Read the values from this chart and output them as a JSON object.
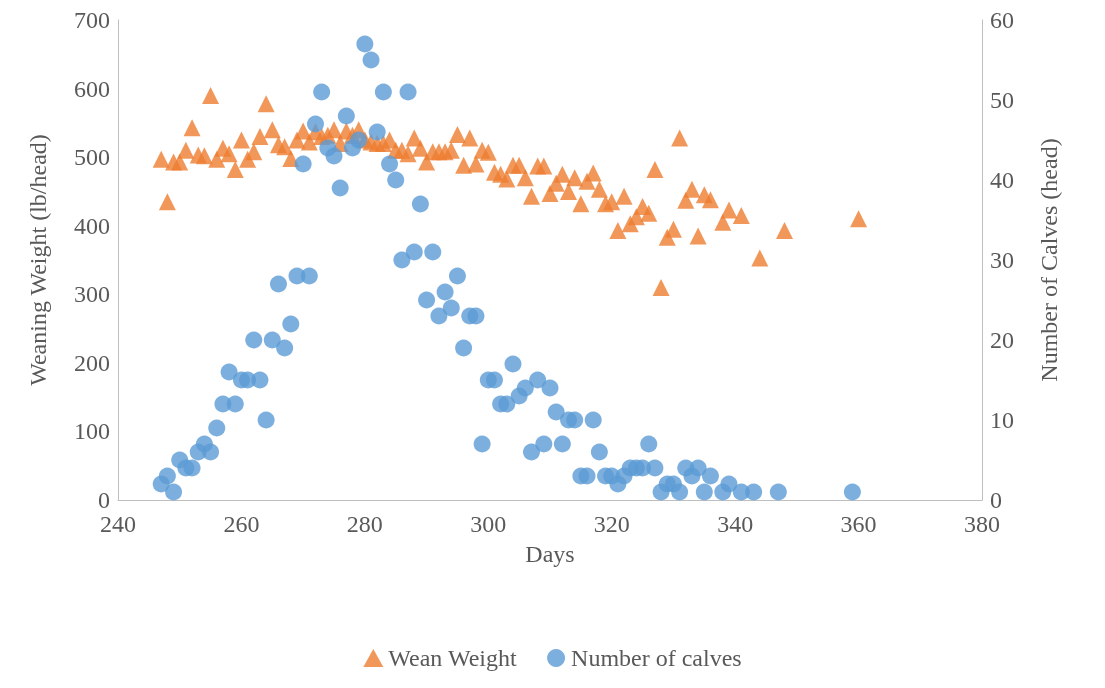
{
  "chart_data": {
    "type": "scatter",
    "xlabel": "Days",
    "ylabel": "Weaning Weight (lb/head)",
    "y2label": "Number of Calves (head)",
    "xlim": [
      240,
      380
    ],
    "xticks": [
      240,
      260,
      280,
      300,
      320,
      340,
      360,
      380
    ],
    "ylim": [
      0,
      700
    ],
    "yticks": [
      0,
      100,
      200,
      300,
      400,
      500,
      600,
      700
    ],
    "y2lim": [
      0,
      60
    ],
    "y2ticks": [
      0,
      10,
      20,
      30,
      40,
      50,
      60
    ],
    "grid": false,
    "legend": "bottom",
    "series": [
      {
        "name": "Wean Weight",
        "color": "#ed7d31",
        "marker": "triangle",
        "x": [
          247,
          248,
          249,
          250,
          251,
          252,
          253,
          254,
          255,
          256,
          257,
          258,
          259,
          260,
          261,
          262,
          263,
          264,
          265,
          266,
          267,
          268,
          269,
          270,
          271,
          272,
          273,
          274,
          275,
          276,
          277,
          278,
          279,
          280,
          281,
          282,
          283,
          284,
          285,
          286,
          287,
          288,
          289,
          290,
          291,
          292,
          293,
          294,
          295,
          296,
          297,
          298,
          299,
          300,
          301,
          302,
          303,
          304,
          305,
          306,
          307,
          308,
          309,
          310,
          311,
          312,
          313,
          314,
          315,
          316,
          317,
          318,
          319,
          320,
          321,
          322,
          323,
          324,
          325,
          326,
          327,
          328,
          329,
          330,
          331,
          332,
          333,
          334,
          335,
          336,
          338,
          339,
          341,
          344,
          348,
          360
        ],
        "values": [
          497,
          435,
          493,
          493,
          510,
          543,
          503,
          502,
          590,
          497,
          513,
          505,
          482,
          525,
          497,
          508,
          530,
          578,
          540,
          518,
          515,
          498,
          525,
          538,
          522,
          537,
          530,
          532,
          540,
          520,
          538,
          532,
          540,
          525,
          522,
          520,
          520,
          525,
          510,
          510,
          505,
          528,
          513,
          493,
          508,
          508,
          508,
          510,
          533,
          488,
          528,
          490,
          510,
          507,
          478,
          475,
          468,
          488,
          488,
          470,
          443,
          487,
          487,
          447,
          462,
          475,
          450,
          470,
          432,
          465,
          477,
          453,
          432,
          435,
          393,
          443,
          403,
          413,
          428,
          418,
          482,
          310,
          383,
          395,
          528,
          437,
          453,
          385,
          445,
          438,
          405,
          423,
          415,
          353,
          393,
          410
        ]
      },
      {
        "name": "Number of calves",
        "color": "#5b9bd5",
        "marker": "circle",
        "axis": "y2",
        "x": [
          247,
          248,
          249,
          250,
          251,
          252,
          253,
          254,
          255,
          256,
          257,
          258,
          259,
          260,
          261,
          262,
          263,
          264,
          265,
          266,
          267,
          268,
          269,
          270,
          271,
          272,
          273,
          274,
          275,
          276,
          277,
          278,
          279,
          280,
          281,
          282,
          283,
          284,
          285,
          286,
          287,
          288,
          289,
          290,
          291,
          292,
          293,
          294,
          295,
          296,
          297,
          298,
          299,
          300,
          301,
          302,
          303,
          304,
          305,
          306,
          307,
          308,
          309,
          310,
          311,
          312,
          313,
          314,
          315,
          316,
          317,
          318,
          319,
          320,
          321,
          322,
          323,
          324,
          325,
          326,
          327,
          328,
          329,
          330,
          331,
          332,
          333,
          334,
          335,
          336,
          338,
          339,
          341,
          343,
          347,
          359
        ],
        "values": [
          2,
          3,
          1,
          5,
          4,
          4,
          6,
          7,
          6,
          9,
          12,
          16,
          12,
          15,
          15,
          20,
          15,
          10,
          20,
          27,
          19,
          22,
          28,
          42,
          28,
          47,
          51,
          44,
          43,
          39,
          48,
          44,
          45,
          57,
          55,
          46,
          51,
          42,
          40,
          30,
          51,
          31,
          37,
          25,
          31,
          23,
          26,
          24,
          28,
          19,
          23,
          23,
          7,
          15,
          15,
          12,
          12,
          17,
          13,
          14,
          6,
          15,
          7,
          14,
          11,
          7,
          10,
          10,
          3,
          3,
          10,
          6,
          3,
          3,
          2,
          3,
          4,
          4,
          4,
          7,
          4,
          1,
          2,
          2,
          1,
          4,
          3,
          4,
          1,
          3,
          1,
          2,
          1,
          1,
          1,
          1
        ]
      }
    ]
  }
}
